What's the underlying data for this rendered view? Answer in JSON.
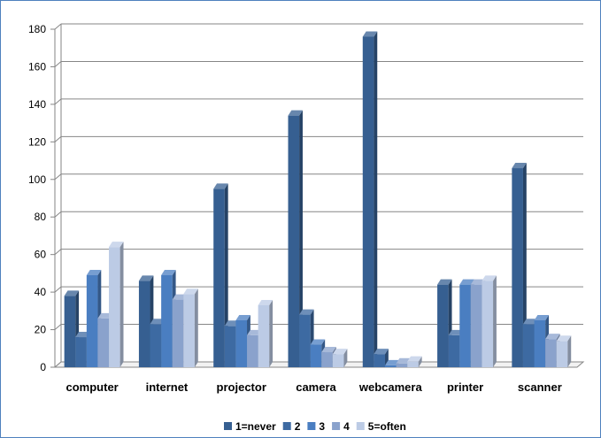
{
  "chart_data": {
    "type": "bar",
    "style": "3d-clustered",
    "categories": [
      "computer",
      "internet",
      "projector",
      "camera",
      "webcamera",
      "printer",
      "scanner"
    ],
    "series": [
      {
        "name": "1=never",
        "color": "#365f91",
        "values": [
          38,
          46,
          95,
          134,
          176,
          44,
          106
        ]
      },
      {
        "name": "2",
        "color": "#3d6aa2",
        "values": [
          16,
          23,
          22,
          28,
          7,
          17,
          23
        ]
      },
      {
        "name": "3",
        "color": "#4a7ec1",
        "values": [
          49,
          49,
          25,
          12,
          1,
          44,
          25
        ]
      },
      {
        "name": "4",
        "color": "#8aa2cc",
        "values": [
          26,
          36,
          17,
          8,
          2,
          44,
          15
        ]
      },
      {
        "name": "5=often",
        "color": "#bccbe5",
        "values": [
          64,
          39,
          33,
          7,
          3,
          46,
          14
        ]
      }
    ],
    "ylim": [
      0,
      180
    ],
    "yticks": [
      0,
      20,
      40,
      60,
      80,
      100,
      120,
      140,
      160,
      180
    ],
    "grid": true,
    "legend_position": "bottom"
  }
}
